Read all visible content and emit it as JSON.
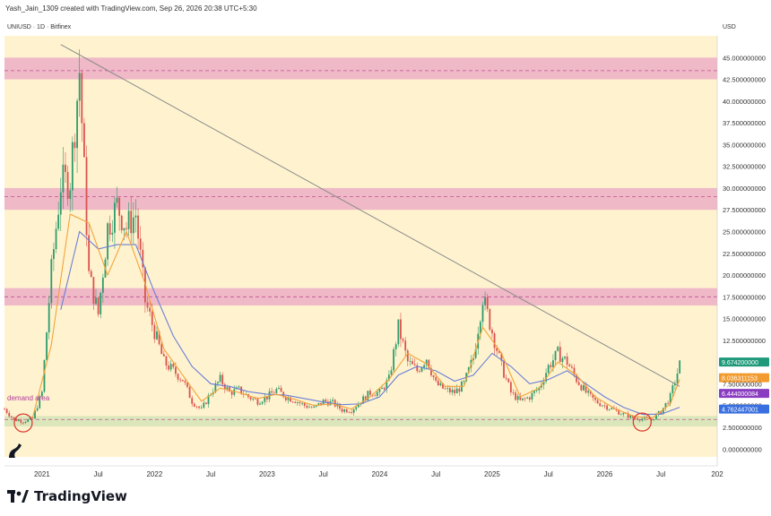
{
  "header": {
    "author_line": "Yash_Jain_1309 created with TradingView.com, Sep 26, 2026 20:38 UTC+5:30",
    "symbol_line": "UNIUSD · 1D · Bitfinex",
    "currency": "USD"
  },
  "brand": {
    "name": "TradingView",
    "logo_icon": "tradingview-logo-icon",
    "pine_icon": "dinosaur-icon"
  },
  "colors": {
    "background": "#fff3cf",
    "resistance_zone": "#e9a6c4",
    "demand_zone": "#cfe3b4",
    "candle_up": "#2e9b6b",
    "candle_down": "#d9534f",
    "ma_fast": "#f2a33a",
    "ma_slow": "#6a7fd6",
    "trendline": "#8a8a8a",
    "dashed_line": "#c05090",
    "tag_green": "#1e9a7a",
    "tag_orange": "#f29a2e",
    "tag_purple": "#8a3cc0",
    "tag_blue": "#3a6fe0"
  },
  "chart_data": {
    "type": "candlestick",
    "title": "UNIUSD · 1D · Bitfinex",
    "y_unit": "USD",
    "ylim": [
      -0.9,
      47.5
    ],
    "xlim": [
      "2020-09",
      "2027-01"
    ],
    "y_ticks": [
      "0.000000000",
      "2.500000000",
      "5.000000000",
      "7.500000000",
      "10.000000000",
      "12.500000000",
      "15.000000000",
      "17.500000000",
      "20.000000000",
      "22.500000000",
      "25.000000000",
      "27.500000000",
      "30.000000000",
      "32.500000000",
      "35.000000000",
      "37.500000000",
      "40.000000000",
      "42.500000000",
      "45.000000000"
    ],
    "x_ticks": [
      {
        "date": "2021-01",
        "label": "2021"
      },
      {
        "date": "2021-07",
        "label": "Jul"
      },
      {
        "date": "2022-01",
        "label": "2022"
      },
      {
        "date": "2022-07",
        "label": "Jul"
      },
      {
        "date": "2023-01",
        "label": "2023"
      },
      {
        "date": "2023-07",
        "label": "Jul"
      },
      {
        "date": "2024-01",
        "label": "2024"
      },
      {
        "date": "2024-07",
        "label": "Jul"
      },
      {
        "date": "2025-01",
        "label": "2025"
      },
      {
        "date": "2025-07",
        "label": "Jul"
      },
      {
        "date": "2026-01",
        "label": "2026"
      },
      {
        "date": "2026-07",
        "label": "Jul"
      },
      {
        "date": "2027-01",
        "label": "202"
      }
    ],
    "price_series": [
      {
        "date": "2020-09",
        "price": 4.6
      },
      {
        "date": "2020-10",
        "price": 3.4
      },
      {
        "date": "2020-11",
        "price": 3.2
      },
      {
        "date": "2020-12",
        "price": 3.5
      },
      {
        "date": "2021-01",
        "price": 6.5
      },
      {
        "date": "2021-02",
        "price": 20.5
      },
      {
        "date": "2021-03",
        "price": 30.5
      },
      {
        "date": "2021-04",
        "price": 31.0
      },
      {
        "date": "2021-05",
        "price": 43.5
      },
      {
        "date": "2021-06",
        "price": 20.0
      },
      {
        "date": "2021-07",
        "price": 15.5
      },
      {
        "date": "2021-08",
        "price": 25.5
      },
      {
        "date": "2021-09",
        "price": 28.0
      },
      {
        "date": "2021-10",
        "price": 25.5
      },
      {
        "date": "2021-11",
        "price": 27.0
      },
      {
        "date": "2021-12",
        "price": 17.0
      },
      {
        "date": "2022-01",
        "price": 13.5
      },
      {
        "date": "2022-02",
        "price": 10.0
      },
      {
        "date": "2022-03",
        "price": 9.0
      },
      {
        "date": "2022-04",
        "price": 8.0
      },
      {
        "date": "2022-05",
        "price": 5.5
      },
      {
        "date": "2022-06",
        "price": 4.5
      },
      {
        "date": "2022-07",
        "price": 6.5
      },
      {
        "date": "2022-08",
        "price": 8.0
      },
      {
        "date": "2022-09",
        "price": 6.5
      },
      {
        "date": "2022-10",
        "price": 6.8
      },
      {
        "date": "2022-11",
        "price": 6.0
      },
      {
        "date": "2022-12",
        "price": 5.5
      },
      {
        "date": "2023-01",
        "price": 6.0
      },
      {
        "date": "2023-02",
        "price": 6.8
      },
      {
        "date": "2023-03",
        "price": 6.0
      },
      {
        "date": "2023-04",
        "price": 5.6
      },
      {
        "date": "2023-05",
        "price": 5.0
      },
      {
        "date": "2023-06",
        "price": 4.7
      },
      {
        "date": "2023-07",
        "price": 5.5
      },
      {
        "date": "2023-08",
        "price": 5.3
      },
      {
        "date": "2023-09",
        "price": 4.5
      },
      {
        "date": "2023-10",
        "price": 4.5
      },
      {
        "date": "2023-11",
        "price": 5.5
      },
      {
        "date": "2023-12",
        "price": 6.5
      },
      {
        "date": "2024-01",
        "price": 6.5
      },
      {
        "date": "2024-02",
        "price": 8.0
      },
      {
        "date": "2024-03",
        "price": 14.0
      },
      {
        "date": "2024-04",
        "price": 10.0
      },
      {
        "date": "2024-05",
        "price": 9.0
      },
      {
        "date": "2024-06",
        "price": 10.5
      },
      {
        "date": "2024-07",
        "price": 7.5
      },
      {
        "date": "2024-08",
        "price": 6.8
      },
      {
        "date": "2024-09",
        "price": 6.5
      },
      {
        "date": "2024-10",
        "price": 7.5
      },
      {
        "date": "2024-11",
        "price": 10.5
      },
      {
        "date": "2024-12",
        "price": 17.5
      },
      {
        "date": "2025-01",
        "price": 13.5
      },
      {
        "date": "2025-02",
        "price": 9.5
      },
      {
        "date": "2025-03",
        "price": 6.5
      },
      {
        "date": "2025-04",
        "price": 5.5
      },
      {
        "date": "2025-05",
        "price": 6.0
      },
      {
        "date": "2025-06",
        "price": 7.0
      },
      {
        "date": "2025-07",
        "price": 9.5
      },
      {
        "date": "2025-08",
        "price": 11.0
      },
      {
        "date": "2025-09",
        "price": 10.0
      },
      {
        "date": "2025-10",
        "price": 8.0
      },
      {
        "date": "2025-11",
        "price": 6.5
      },
      {
        "date": "2025-12",
        "price": 5.5
      },
      {
        "date": "2026-01",
        "price": 5.0
      },
      {
        "date": "2026-02",
        "price": 4.5
      },
      {
        "date": "2026-03",
        "price": 4.0
      },
      {
        "date": "2026-04",
        "price": 3.6
      },
      {
        "date": "2026-05",
        "price": 3.5
      },
      {
        "date": "2026-06",
        "price": 3.4
      },
      {
        "date": "2026-07",
        "price": 4.3
      },
      {
        "date": "2026-08",
        "price": 6.0
      },
      {
        "date": "2026-09",
        "price": 9.7
      }
    ],
    "ma_fast": [
      {
        "date": "2020-12",
        "price": 3.6
      },
      {
        "date": "2021-02",
        "price": 12.0
      },
      {
        "date": "2021-04",
        "price": 27.0
      },
      {
        "date": "2021-06",
        "price": 26.0
      },
      {
        "date": "2021-08",
        "price": 20.0
      },
      {
        "date": "2021-10",
        "price": 25.0
      },
      {
        "date": "2021-12",
        "price": 19.0
      },
      {
        "date": "2022-02",
        "price": 11.5
      },
      {
        "date": "2022-04",
        "price": 8.5
      },
      {
        "date": "2022-06",
        "price": 5.5
      },
      {
        "date": "2022-08",
        "price": 7.0
      },
      {
        "date": "2022-10",
        "price": 6.5
      },
      {
        "date": "2022-12",
        "price": 5.8
      },
      {
        "date": "2023-02",
        "price": 6.3
      },
      {
        "date": "2023-04",
        "price": 5.7
      },
      {
        "date": "2023-06",
        "price": 5.0
      },
      {
        "date": "2023-08",
        "price": 5.2
      },
      {
        "date": "2023-10",
        "price": 4.6
      },
      {
        "date": "2023-12",
        "price": 6.0
      },
      {
        "date": "2024-02",
        "price": 8.0
      },
      {
        "date": "2024-04",
        "price": 11.0
      },
      {
        "date": "2024-06",
        "price": 9.8
      },
      {
        "date": "2024-08",
        "price": 7.2
      },
      {
        "date": "2024-10",
        "price": 7.2
      },
      {
        "date": "2024-12",
        "price": 14.0
      },
      {
        "date": "2025-02",
        "price": 11.0
      },
      {
        "date": "2025-04",
        "price": 6.0
      },
      {
        "date": "2025-06",
        "price": 7.0
      },
      {
        "date": "2025-08",
        "price": 10.0
      },
      {
        "date": "2025-10",
        "price": 8.5
      },
      {
        "date": "2025-12",
        "price": 6.0
      },
      {
        "date": "2026-02",
        "price": 4.7
      },
      {
        "date": "2026-04",
        "price": 3.8
      },
      {
        "date": "2026-06",
        "price": 3.5
      },
      {
        "date": "2026-08",
        "price": 5.2
      },
      {
        "date": "2026-09",
        "price": 8.0
      }
    ],
    "ma_slow": [
      {
        "date": "2021-03",
        "price": 16.0
      },
      {
        "date": "2021-05",
        "price": 25.0
      },
      {
        "date": "2021-07",
        "price": 23.0
      },
      {
        "date": "2021-09",
        "price": 23.5
      },
      {
        "date": "2021-11",
        "price": 23.5
      },
      {
        "date": "2022-01",
        "price": 18.0
      },
      {
        "date": "2022-03",
        "price": 13.0
      },
      {
        "date": "2022-05",
        "price": 9.5
      },
      {
        "date": "2022-07",
        "price": 7.5
      },
      {
        "date": "2022-09",
        "price": 7.2
      },
      {
        "date": "2022-11",
        "price": 6.6
      },
      {
        "date": "2023-01",
        "price": 6.3
      },
      {
        "date": "2023-03",
        "price": 6.2
      },
      {
        "date": "2023-05",
        "price": 5.8
      },
      {
        "date": "2023-07",
        "price": 5.4
      },
      {
        "date": "2023-09",
        "price": 5.1
      },
      {
        "date": "2023-11",
        "price": 5.2
      },
      {
        "date": "2024-01",
        "price": 6.0
      },
      {
        "date": "2024-03",
        "price": 8.5
      },
      {
        "date": "2024-05",
        "price": 9.5
      },
      {
        "date": "2024-07",
        "price": 9.0
      },
      {
        "date": "2024-09",
        "price": 7.8
      },
      {
        "date": "2024-11",
        "price": 8.5
      },
      {
        "date": "2025-01",
        "price": 11.0
      },
      {
        "date": "2025-03",
        "price": 9.5
      },
      {
        "date": "2025-05",
        "price": 7.5
      },
      {
        "date": "2025-07",
        "price": 8.0
      },
      {
        "date": "2025-09",
        "price": 9.0
      },
      {
        "date": "2025-11",
        "price": 7.5
      },
      {
        "date": "2026-01",
        "price": 6.0
      },
      {
        "date": "2026-03",
        "price": 4.8
      },
      {
        "date": "2026-05",
        "price": 4.0
      },
      {
        "date": "2026-07",
        "price": 4.0
      },
      {
        "date": "2026-09",
        "price": 4.8
      }
    ],
    "trendline": [
      {
        "date": "2021-03",
        "price": 46.5
      },
      {
        "date": "2026-09",
        "price": 7.2
      }
    ],
    "zones": [
      {
        "name": "resistance-zone-top",
        "from": 42.5,
        "to": 45.0,
        "dashed_at": 43.5
      },
      {
        "name": "resistance-zone-mid",
        "from": 27.5,
        "to": 30.0,
        "dashed_at": 29.0
      },
      {
        "name": "resistance-zone-low",
        "from": 16.5,
        "to": 18.5,
        "dashed_at": 17.5
      },
      {
        "name": "demand-zone",
        "from": 2.6,
        "to": 3.8,
        "dashed_at": 3.4
      }
    ],
    "demand_label": "demand area",
    "circles": [
      {
        "date": "2020-11",
        "price": 3.0
      },
      {
        "date": "2026-05",
        "price": 3.1
      }
    ],
    "price_tags": [
      {
        "label": "9.674200000",
        "price": 10.0,
        "color": "#1e9a7a"
      },
      {
        "label": "8.036311153",
        "price": 8.2,
        "color": "#f29a2e"
      },
      {
        "label": "6.444000084",
        "price": 6.4,
        "color": "#8a3cc0"
      },
      {
        "label": "4.762447001",
        "price": 4.6,
        "color": "#3a6fe0"
      }
    ]
  }
}
